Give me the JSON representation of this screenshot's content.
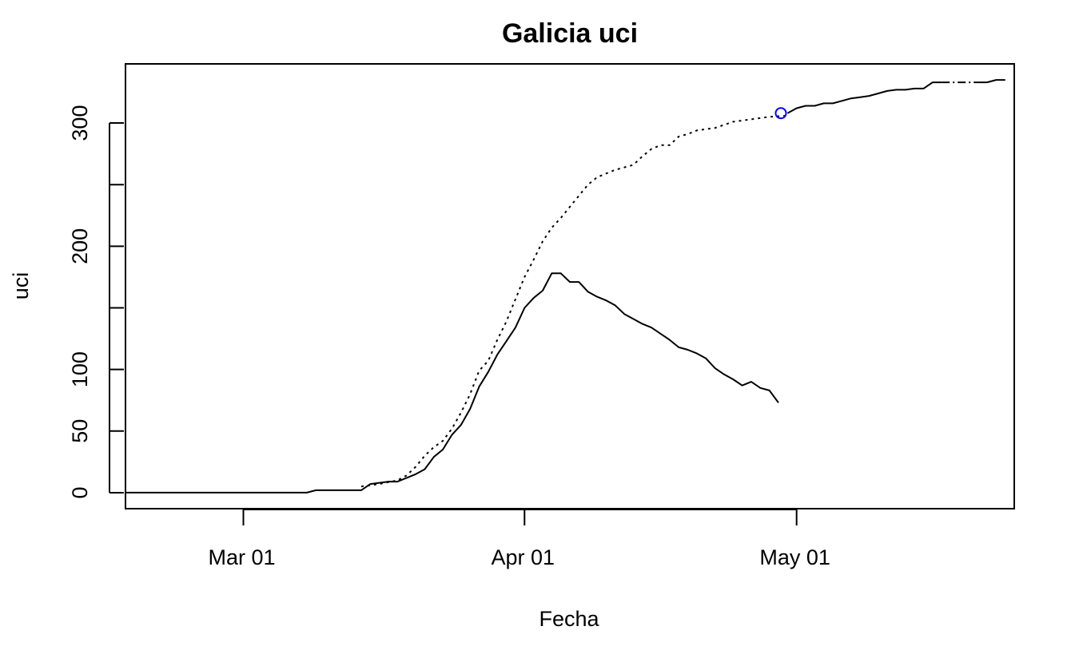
{
  "chart_data": {
    "type": "line",
    "title": "Galicia uci",
    "xlabel": "Fecha",
    "ylabel": "uci",
    "grid": false,
    "x_ticks": [
      {
        "date": "2020-03-01",
        "label": "Mar 01"
      },
      {
        "date": "2020-04-01",
        "label": "Apr 01"
      },
      {
        "date": "2020-05-01",
        "label": "May 01"
      }
    ],
    "y_ticks": [
      0,
      50,
      100,
      150,
      200,
      250,
      300
    ],
    "y_tick_labels": [
      "0",
      "50",
      "100",
      "",
      "200",
      "",
      "300"
    ],
    "x_range": [
      "2020-02-17",
      "2020-05-25"
    ],
    "y_range": [
      -13,
      348
    ],
    "colors": {
      "line": "#000000",
      "marker": "#0000ff"
    },
    "series": [
      {
        "style": "solid",
        "points": [
          [
            "2020-02-17",
            0
          ],
          [
            "2020-03-08",
            0
          ],
          [
            "2020-03-09",
            2
          ],
          [
            "2020-03-11",
            2
          ],
          [
            "2020-03-13",
            2
          ],
          [
            "2020-03-14",
            2
          ],
          [
            "2020-03-15",
            7
          ],
          [
            "2020-03-16",
            8
          ],
          [
            "2020-03-17",
            9
          ],
          [
            "2020-03-18",
            9
          ],
          [
            "2020-03-19",
            12
          ],
          [
            "2020-03-20",
            15
          ],
          [
            "2020-03-21",
            19
          ],
          [
            "2020-03-22",
            29
          ],
          [
            "2020-03-23",
            35
          ],
          [
            "2020-03-24",
            47
          ],
          [
            "2020-03-25",
            55
          ],
          [
            "2020-03-26",
            68
          ],
          [
            "2020-03-27",
            86
          ],
          [
            "2020-03-28",
            98
          ],
          [
            "2020-03-29",
            112
          ],
          [
            "2020-03-30",
            123
          ],
          [
            "2020-03-31",
            134
          ],
          [
            "2020-04-01",
            150
          ],
          [
            "2020-04-02",
            158
          ],
          [
            "2020-04-03",
            164
          ],
          [
            "2020-04-04",
            178
          ],
          [
            "2020-04-05",
            178
          ],
          [
            "2020-04-06",
            171
          ],
          [
            "2020-04-07",
            171
          ],
          [
            "2020-04-08",
            163
          ],
          [
            "2020-04-09",
            159
          ],
          [
            "2020-04-10",
            156
          ],
          [
            "2020-04-11",
            152
          ],
          [
            "2020-04-12",
            145
          ],
          [
            "2020-04-13",
            141
          ],
          [
            "2020-04-14",
            137
          ],
          [
            "2020-04-15",
            134
          ],
          [
            "2020-04-16",
            129
          ],
          [
            "2020-04-17",
            124
          ],
          [
            "2020-04-18",
            118
          ],
          [
            "2020-04-19",
            116
          ],
          [
            "2020-04-20",
            113
          ],
          [
            "2020-04-21",
            109
          ],
          [
            "2020-04-22",
            101
          ],
          [
            "2020-04-23",
            96
          ],
          [
            "2020-04-24",
            92
          ],
          [
            "2020-04-25",
            87
          ],
          [
            "2020-04-26",
            90
          ],
          [
            "2020-04-27",
            85
          ],
          [
            "2020-04-28",
            83
          ],
          [
            "2020-04-29",
            73
          ]
        ]
      },
      {
        "style": "dotted",
        "points": [
          [
            "2020-03-14",
            5
          ],
          [
            "2020-03-16",
            7
          ],
          [
            "2020-03-18",
            10
          ],
          [
            "2020-03-19",
            14
          ],
          [
            "2020-03-20",
            21
          ],
          [
            "2020-03-21",
            30
          ],
          [
            "2020-03-22",
            37
          ],
          [
            "2020-03-23",
            42
          ],
          [
            "2020-03-24",
            52
          ],
          [
            "2020-03-25",
            65
          ],
          [
            "2020-03-26",
            80
          ],
          [
            "2020-03-27",
            99
          ],
          [
            "2020-03-28",
            107
          ],
          [
            "2020-03-29",
            124
          ],
          [
            "2020-03-30",
            139
          ],
          [
            "2020-03-31",
            157
          ],
          [
            "2020-04-01",
            175
          ],
          [
            "2020-04-02",
            189
          ],
          [
            "2020-04-03",
            204
          ],
          [
            "2020-04-04",
            215
          ],
          [
            "2020-04-05",
            223
          ],
          [
            "2020-04-06",
            232
          ],
          [
            "2020-04-07",
            241
          ],
          [
            "2020-04-08",
            250
          ],
          [
            "2020-04-09",
            256
          ],
          [
            "2020-04-10",
            259
          ],
          [
            "2020-04-11",
            262
          ],
          [
            "2020-04-12",
            264
          ],
          [
            "2020-04-13",
            266
          ],
          [
            "2020-04-14",
            273
          ],
          [
            "2020-04-15",
            279
          ],
          [
            "2020-04-16",
            282
          ],
          [
            "2020-04-17",
            282
          ],
          [
            "2020-04-18",
            289
          ],
          [
            "2020-04-19",
            291
          ],
          [
            "2020-04-20",
            294
          ],
          [
            "2020-04-22",
            296
          ],
          [
            "2020-04-24",
            301
          ],
          [
            "2020-04-28",
            305
          ],
          [
            "2020-04-30",
            306
          ]
        ]
      },
      {
        "style": "solid",
        "points": [
          [
            "2020-04-30",
            308
          ],
          [
            "2020-05-01",
            312
          ],
          [
            "2020-05-02",
            314
          ],
          [
            "2020-05-03",
            314
          ],
          [
            "2020-05-04",
            316
          ],
          [
            "2020-05-05",
            316
          ],
          [
            "2020-05-06",
            318
          ],
          [
            "2020-05-07",
            320
          ],
          [
            "2020-05-08",
            321
          ],
          [
            "2020-05-09",
            322
          ],
          [
            "2020-05-10",
            324
          ],
          [
            "2020-05-11",
            326
          ],
          [
            "2020-05-12",
            327
          ],
          [
            "2020-05-13",
            327
          ],
          [
            "2020-05-14",
            328
          ],
          [
            "2020-05-15",
            328
          ],
          [
            "2020-05-16",
            333
          ],
          [
            "2020-05-17",
            333
          ]
        ]
      },
      {
        "style": "dashdot",
        "points": [
          [
            "2020-05-17",
            333
          ],
          [
            "2020-05-21",
            333
          ]
        ]
      },
      {
        "style": "solid",
        "points": [
          [
            "2020-05-21",
            333
          ],
          [
            "2020-05-22",
            333
          ],
          [
            "2020-05-23",
            335
          ],
          [
            "2020-05-24",
            335
          ]
        ]
      }
    ],
    "markers": [
      {
        "x": "2020-04-29",
        "y": 308,
        "shape": "circle"
      }
    ]
  }
}
